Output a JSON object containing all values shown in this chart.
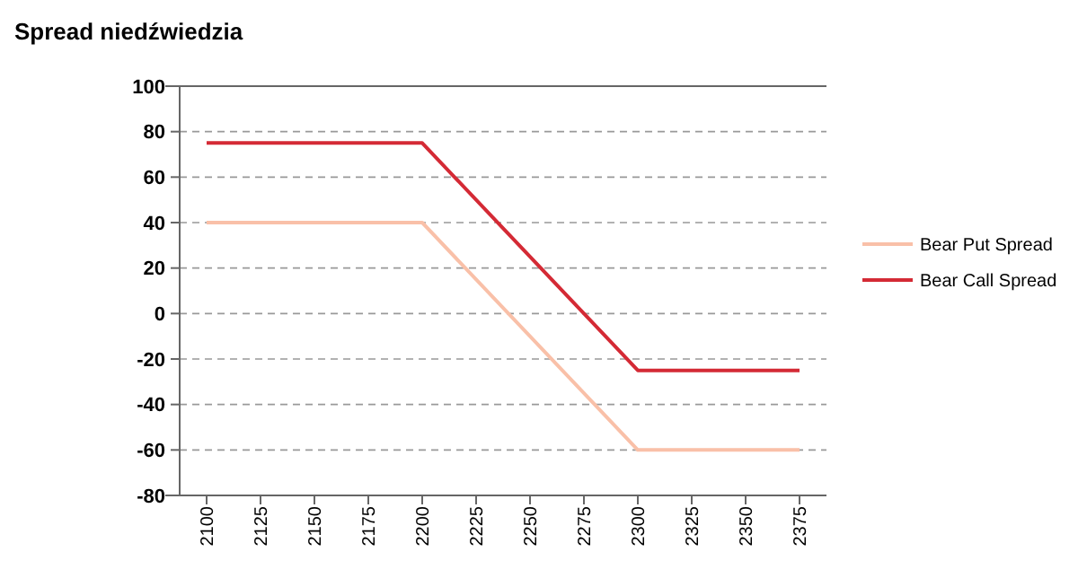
{
  "chart_data": {
    "type": "line",
    "title": "Spread niedźwiedzia",
    "x": [
      2100,
      2200,
      2300,
      2375
    ],
    "series": [
      {
        "name": "Bear Put Spread",
        "color": "#f9c0a8",
        "values": [
          40,
          40,
          -60,
          -60
        ]
      },
      {
        "name": "Bear Call Spread",
        "color": "#d42a35",
        "values": [
          75,
          75,
          -25,
          -25
        ]
      }
    ],
    "xlim": [
      2087.5,
      2387.5
    ],
    "xticks": [
      2100,
      2125,
      2150,
      2175,
      2200,
      2225,
      2250,
      2275,
      2300,
      2325,
      2350,
      2375
    ],
    "ylim": [
      -80,
      100
    ],
    "yticks": [
      -80,
      -60,
      -40,
      -20,
      0,
      20,
      40,
      60,
      80,
      100
    ],
    "grid": "y",
    "legend": "right",
    "line_style": "solid"
  }
}
